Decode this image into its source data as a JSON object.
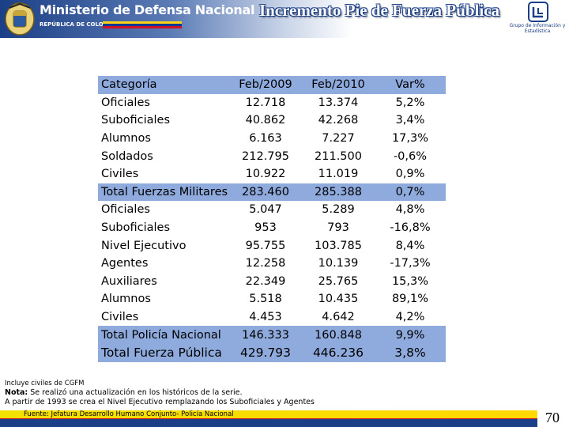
{
  "header": {
    "ministry": "Ministerio de Defensa Nacional",
    "republic": "REPÚBLICA DE COLOMBIA",
    "title": "Incremento Pie de Fuerza Pública",
    "group_logo_label": "Grupo de Información y Estadística",
    "colors": {
      "header_blue": "#1b3f86",
      "flag_yellow": "#fcd116",
      "flag_blue": "#003893",
      "flag_red": "#ce1126"
    }
  },
  "table": {
    "columns": [
      "Categoría",
      "Feb/2009",
      "Feb/2010",
      "Var%"
    ],
    "rows": [
      {
        "type": "item",
        "cells": [
          "Oficiales",
          "12.718",
          "13.374",
          "5,2%"
        ]
      },
      {
        "type": "item",
        "cells": [
          "Suboficiales",
          "40.862",
          "42.268",
          "3,4%"
        ]
      },
      {
        "type": "item",
        "cells": [
          "Alumnos",
          "6.163",
          "7.227",
          "17,3%"
        ]
      },
      {
        "type": "item",
        "cells": [
          "Soldados",
          "212.795",
          "211.500",
          "-0,6%"
        ]
      },
      {
        "type": "item",
        "cells": [
          "Civiles",
          "10.922",
          "11.019",
          "0,9%"
        ]
      },
      {
        "type": "total",
        "cells": [
          "Total Fuerzas Militares",
          "283.460",
          "285.388",
          "0,7%"
        ]
      },
      {
        "type": "item",
        "cells": [
          "Oficiales",
          "5.047",
          "5.289",
          "4,8%"
        ]
      },
      {
        "type": "item",
        "cells": [
          "Suboficiales",
          "953",
          "793",
          "-16,8%"
        ]
      },
      {
        "type": "item",
        "cells": [
          "Nivel Ejecutivo",
          "95.755",
          "103.785",
          "8,4%"
        ]
      },
      {
        "type": "item",
        "cells": [
          "Agentes",
          "12.258",
          "10.139",
          "-17,3%"
        ]
      },
      {
        "type": "item",
        "cells": [
          "Auxiliares",
          "22.349",
          "25.765",
          "15,3%"
        ]
      },
      {
        "type": "item",
        "cells": [
          "Alumnos",
          "5.518",
          "10.435",
          "89,1%"
        ]
      },
      {
        "type": "item",
        "cells": [
          "Civiles",
          "4.453",
          "4.642",
          "4,2%"
        ]
      },
      {
        "type": "total",
        "cells": [
          "Total  Policía Nacional",
          "146.333",
          "160.848",
          "9,9%"
        ]
      },
      {
        "type": "grand",
        "cells": [
          "Total Fuerza Pública",
          "429.793",
          "446.236",
          "3,8%"
        ]
      }
    ],
    "colors": {
      "highlight": "#8faadc"
    }
  },
  "notes": {
    "line1": "Incluye civiles de CGFM",
    "nota_label": "Nota:",
    "nota_text": " Se realizó una actualización en los históricos de la serie.",
    "line3": "A partir de 1993 se crea el Nivel Ejecutivo remplazando los Suboficiales y Agentes"
  },
  "footer": {
    "source": "Fuente: Jefatura Desarrollo Humano Conjunto- Policía Nacional",
    "page_number": "70"
  }
}
